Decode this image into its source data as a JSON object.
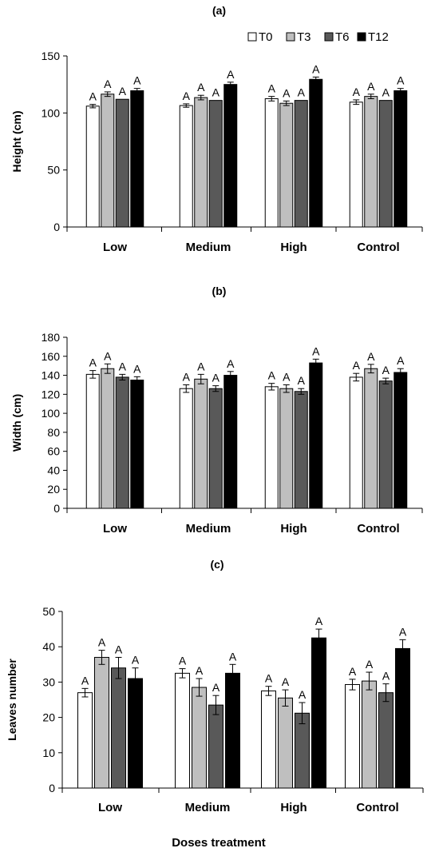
{
  "legend": [
    {
      "name": "T0",
      "color": "#ffffff"
    },
    {
      "name": "T3",
      "color": "#bfbfbf"
    },
    {
      "name": "T6",
      "color": "#595959"
    },
    {
      "name": "T12",
      "color": "#000000"
    }
  ],
  "xlabel": "Doses treatment",
  "chart_data": [
    {
      "type": "bar",
      "title": "(a)",
      "ylabel": "Height (cm)",
      "categories": [
        "Low",
        "Medium",
        "High",
        "Control"
      ],
      "ylim": [
        0,
        150
      ],
      "yticks": [
        0,
        50,
        100,
        150
      ],
      "series": [
        {
          "name": "T0",
          "values": [
            106,
            106.5,
            112.5,
            109.5
          ],
          "errors": [
            1.5,
            1.5,
            2,
            2
          ]
        },
        {
          "name": "T3",
          "values": [
            116.5,
            113.5,
            108.5,
            114.5
          ],
          "errors": [
            2,
            2,
            2,
            2
          ]
        },
        {
          "name": "T6",
          "values": [
            112,
            111,
            111,
            111
          ],
          "errors": [
            0,
            0,
            0,
            0
          ]
        },
        {
          "name": "T12",
          "values": [
            119.5,
            125,
            129.5,
            119.5
          ],
          "errors": [
            2,
            2,
            2,
            2
          ]
        }
      ],
      "annotations": [
        "A",
        "A",
        "A",
        "A",
        "A",
        "A",
        "A",
        "A",
        "A",
        "A",
        "A",
        "A",
        "A",
        "A",
        "A",
        "A"
      ]
    },
    {
      "type": "bar",
      "title": "(b)",
      "ylabel": "Width (cm)",
      "categories": [
        "Low",
        "Medium",
        "High",
        "Control"
      ],
      "ylim": [
        0,
        180
      ],
      "yticks": [
        0,
        20,
        40,
        60,
        80,
        100,
        120,
        140,
        160,
        180
      ],
      "series": [
        {
          "name": "T0",
          "values": [
            141,
            126,
            128,
            138
          ],
          "errors": [
            4,
            4,
            3.5,
            4
          ]
        },
        {
          "name": "T3",
          "values": [
            147,
            136,
            126,
            147
          ],
          "errors": [
            5,
            5,
            4,
            4.5
          ]
        },
        {
          "name": "T6",
          "values": [
            138,
            126,
            123,
            134
          ],
          "errors": [
            3,
            3,
            3,
            3
          ]
        },
        {
          "name": "T12",
          "values": [
            135,
            140,
            153,
            143
          ],
          "errors": [
            3.5,
            4,
            4,
            4
          ]
        }
      ],
      "annotations": [
        "A",
        "A",
        "A",
        "A",
        "A",
        "A",
        "A",
        "A",
        "A",
        "A",
        "A",
        "A",
        "A",
        "A",
        "A",
        "A"
      ]
    },
    {
      "type": "bar",
      "title": "(c)",
      "ylabel": "Leaves number",
      "categories": [
        "Low",
        "Medium",
        "High",
        "Control"
      ],
      "ylim": [
        0,
        50
      ],
      "yticks": [
        0,
        10,
        20,
        30,
        40,
        50
      ],
      "series": [
        {
          "name": "T0",
          "values": [
            27,
            32.5,
            27.5,
            29.3
          ],
          "errors": [
            1.2,
            1.3,
            1.3,
            1.5
          ]
        },
        {
          "name": "T3",
          "values": [
            37,
            28.5,
            25.5,
            30.3
          ],
          "errors": [
            2,
            2.5,
            2.3,
            2.5
          ]
        },
        {
          "name": "T6",
          "values": [
            34,
            23.5,
            21.2,
            27
          ],
          "errors": [
            3,
            2.7,
            3,
            2.5
          ]
        },
        {
          "name": "T12",
          "values": [
            31,
            32.5,
            42.5,
            39.5
          ],
          "errors": [
            3,
            2.5,
            2.5,
            2.5
          ]
        }
      ],
      "annotations": [
        "A",
        "A",
        "A",
        "A",
        "A",
        "A",
        "A",
        "A",
        "A",
        "A",
        "A",
        "A",
        "A",
        "A",
        "A",
        "A"
      ]
    }
  ]
}
